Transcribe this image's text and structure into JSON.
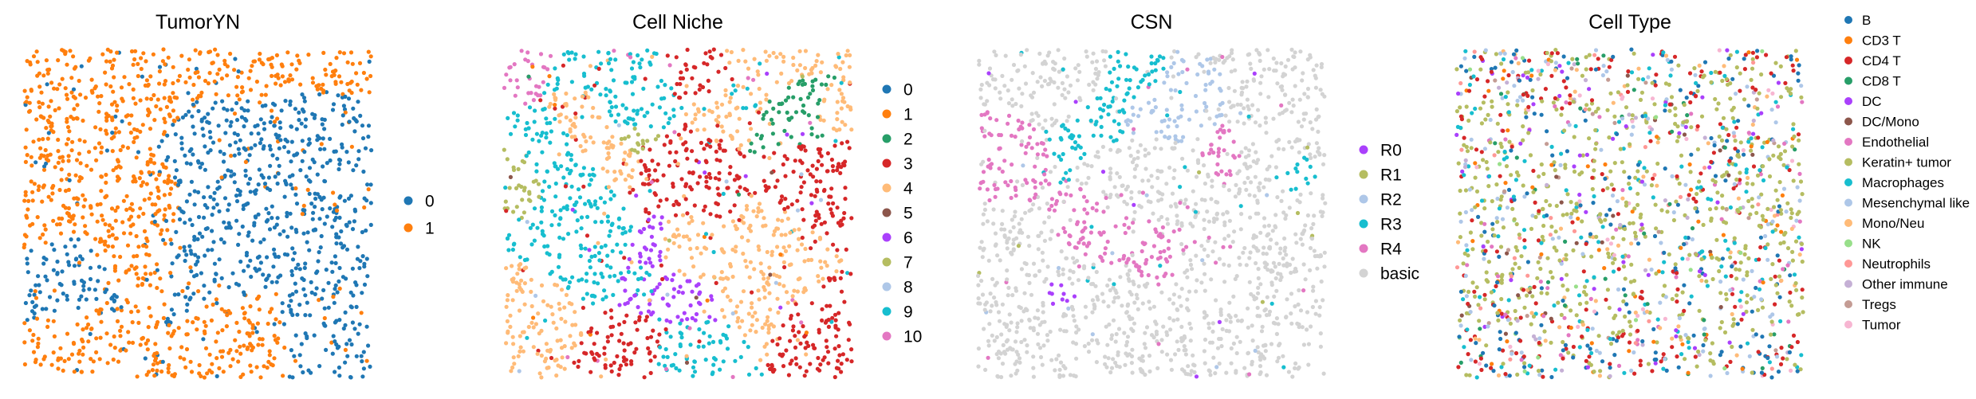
{
  "chart_data": [
    {
      "type": "scatter",
      "title": "TumorYN",
      "legend_position": "right",
      "legend": [
        "0",
        "1"
      ],
      "colors": [
        "#1f77b4",
        "#ff7f0e"
      ],
      "pattern": "blobs",
      "weights": [
        0.45,
        0.55
      ],
      "blob_count": 18
    },
    {
      "type": "scatter",
      "title": "Cell Niche",
      "legend_position": "right",
      "legend": [
        "0",
        "1",
        "2",
        "3",
        "4",
        "5",
        "6",
        "7",
        "8",
        "9",
        "10"
      ],
      "colors": [
        "#1f77b4",
        "#ff7f0e",
        "#279e68",
        "#d62728",
        "#ffbb78",
        "#8c564b",
        "#aa40fc",
        "#b5bd61",
        "#aec7e8",
        "#17becf",
        "#e377c2"
      ],
      "pattern": "niche",
      "weights": [
        0.0,
        0.04,
        0.01,
        0.27,
        0.27,
        0.01,
        0.06,
        0.04,
        0.08,
        0.14,
        0.08
      ],
      "blob_count": 30
    },
    {
      "type": "scatter",
      "title": "CSN",
      "legend_position": "right",
      "legend": [
        "R0",
        "R1",
        "R2",
        "R3",
        "R4",
        "basic"
      ],
      "colors": [
        "#aa40fc",
        "#b5bd61",
        "#aec7e8",
        "#17becf",
        "#e377c2",
        "#d3d3d3"
      ],
      "pattern": "csn",
      "weights": [
        0.06,
        0.04,
        0.08,
        0.14,
        0.08,
        0.6
      ],
      "blob_count": 22
    },
    {
      "type": "scatter",
      "title": "Cell Type",
      "legend_position": "right",
      "legend": [
        "B",
        "CD3 T",
        "CD4 T",
        "CD8 T",
        "DC",
        "DC/Mono",
        "Endothelial",
        "Keratin+ tumor",
        "Macrophages",
        "Mesenchymal like",
        "Mono/Neu",
        "NK",
        "Neutrophils",
        "Other immune",
        "Tregs",
        "Tumor"
      ],
      "colors": [
        "#1f77b4",
        "#ff7f0e",
        "#d62728",
        "#279e68",
        "#aa40fc",
        "#8c564b",
        "#e377c2",
        "#b5bd61",
        "#17becf",
        "#aec7e8",
        "#ffbb78",
        "#98df8a",
        "#ff9896",
        "#c5b0d5",
        "#c49c94",
        "#f7b6d2"
      ],
      "pattern": "celltype",
      "weights": [
        0.08,
        0.03,
        0.1,
        0.03,
        0.03,
        0.02,
        0.03,
        0.42,
        0.09,
        0.06,
        0.03,
        0.01,
        0.02,
        0.02,
        0.01,
        0.02
      ],
      "blob_count": 0
    }
  ]
}
